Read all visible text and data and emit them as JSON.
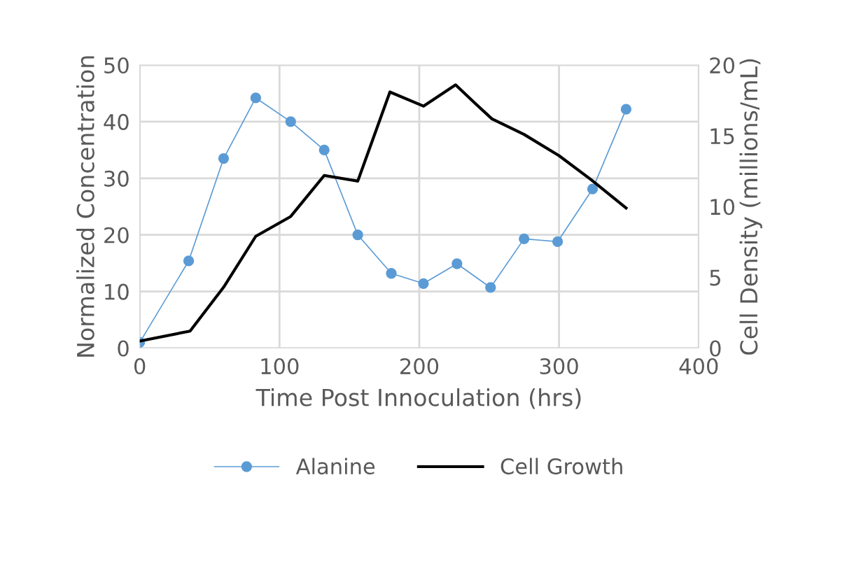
{
  "chart_data": {
    "type": "line",
    "xlabel": "Time Post Innoculation (hrs)",
    "ylabel": "Normalized Concentration",
    "y2label": "Cell Density (millions/mL)",
    "xlim": [
      0,
      400
    ],
    "xticks": [
      0,
      100,
      200,
      300,
      400
    ],
    "ylim": [
      0,
      50
    ],
    "yticks": [
      0,
      10,
      20,
      30,
      40,
      50
    ],
    "y2lim": [
      0,
      20
    ],
    "y2ticks": [
      0,
      5,
      10,
      15,
      20
    ],
    "grid": true,
    "legend": "bottom",
    "series": [
      {
        "name": "Alanine",
        "color": "#5b9bd5",
        "marker": "circle",
        "x": [
          0,
          35,
          60,
          83,
          108,
          132,
          156,
          180,
          203,
          227,
          251,
          275,
          299,
          324,
          348
        ],
        "values": [
          1.0,
          15.4,
          33.5,
          44.2,
          40,
          35,
          20,
          13.2,
          11.4,
          14.9,
          10.7,
          19.3,
          18.8,
          28.1,
          42.2
        ]
      },
      {
        "name": "Cell Growth",
        "color": "#000000",
        "marker": "none",
        "axis": "y2",
        "x": [
          0,
          36,
          60,
          83,
          108,
          132,
          156,
          179,
          203,
          226,
          240,
          252,
          275,
          300,
          323,
          348
        ],
        "values": [
          0.5,
          1.2,
          4.3,
          7.9,
          9.3,
          12.2,
          11.8,
          18.1,
          17.1,
          18.6,
          17.3,
          16.2,
          15.1,
          13.6,
          11.9,
          9.9
        ]
      }
    ]
  }
}
